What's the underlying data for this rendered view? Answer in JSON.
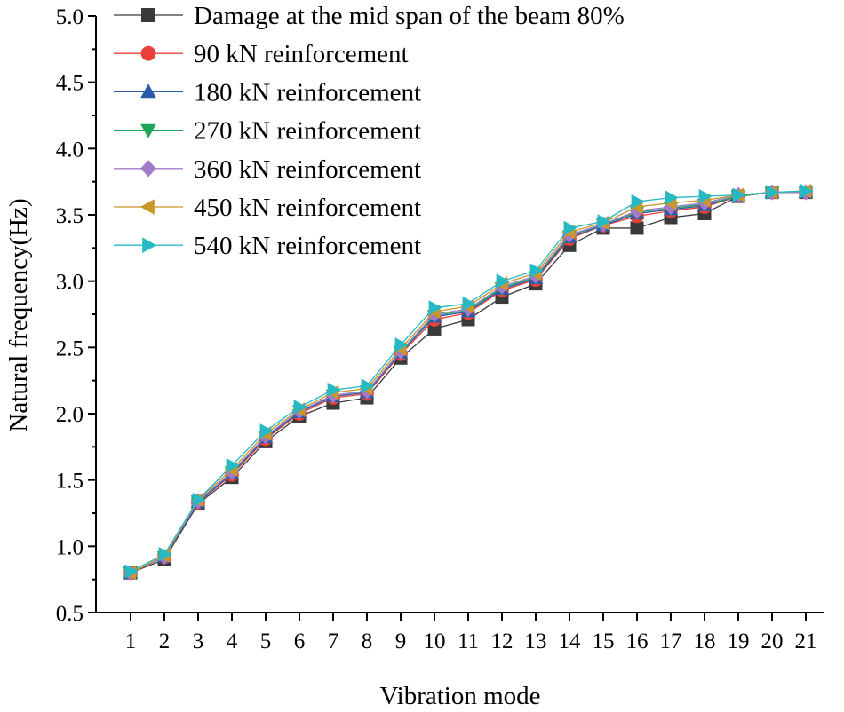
{
  "chart_data": {
    "type": "line",
    "title": "",
    "xlabel": "Vibration mode",
    "ylabel": "Natural frequency(Hz)",
    "ylim": [
      0.5,
      5.0
    ],
    "yticks": [
      "0.5",
      "1.0",
      "1.5",
      "2.0",
      "2.5",
      "3.0",
      "3.5",
      "4.0",
      "4.5",
      "5.0"
    ],
    "categories": [
      "1",
      "2",
      "3",
      "4",
      "5",
      "6",
      "7",
      "8",
      "9",
      "10",
      "11",
      "12",
      "13",
      "14",
      "15",
      "16",
      "17",
      "18",
      "19",
      "20",
      "21"
    ],
    "legend_position": "top-left",
    "grid": false,
    "series": [
      {
        "name": "Damage at the mid span of the beam 80%",
        "color": "#3a3a3a",
        "marker": "square",
        "values": [
          0.8,
          0.9,
          1.32,
          1.52,
          1.79,
          1.98,
          2.08,
          2.12,
          2.42,
          2.64,
          2.71,
          2.88,
          2.98,
          3.27,
          3.4,
          3.4,
          3.48,
          3.51,
          3.64,
          3.67,
          3.67
        ]
      },
      {
        "name": "90 kN reinforcement",
        "color": "#e8413c",
        "marker": "circle",
        "values": [
          0.8,
          0.92,
          1.33,
          1.54,
          1.81,
          2.0,
          2.12,
          2.15,
          2.45,
          2.71,
          2.76,
          2.93,
          3.01,
          3.32,
          3.42,
          3.49,
          3.53,
          3.56,
          3.64,
          3.67,
          3.67
        ]
      },
      {
        "name": "180 kN reinforcement",
        "color": "#2b5aa8",
        "marker": "triangle-up",
        "values": [
          0.8,
          0.92,
          1.33,
          1.55,
          1.82,
          2.01,
          2.13,
          2.16,
          2.46,
          2.73,
          2.77,
          2.94,
          3.02,
          3.33,
          3.42,
          3.51,
          3.54,
          3.57,
          3.64,
          3.67,
          3.67
        ]
      },
      {
        "name": "270 kN reinforcement",
        "color": "#1ea65b",
        "marker": "triangle-down",
        "values": [
          0.8,
          0.92,
          1.34,
          1.56,
          1.83,
          2.02,
          2.14,
          2.17,
          2.47,
          2.74,
          2.78,
          2.95,
          3.03,
          3.34,
          3.43,
          3.52,
          3.55,
          3.58,
          3.64,
          3.67,
          3.67
        ]
      },
      {
        "name": "360 kN reinforcement",
        "color": "#a27ac9",
        "marker": "diamond",
        "values": [
          0.8,
          0.92,
          1.34,
          1.56,
          1.83,
          2.02,
          2.14,
          2.17,
          2.47,
          2.75,
          2.79,
          2.96,
          3.04,
          3.35,
          3.43,
          3.53,
          3.56,
          3.59,
          3.65,
          3.67,
          3.67
        ]
      },
      {
        "name": "450 kN reinforcement",
        "color": "#c9972a",
        "marker": "triangle-left",
        "values": [
          0.8,
          0.93,
          1.35,
          1.58,
          1.85,
          2.03,
          2.16,
          2.19,
          2.49,
          2.77,
          2.81,
          2.98,
          3.06,
          3.37,
          3.44,
          3.56,
          3.59,
          3.61,
          3.65,
          3.67,
          3.68
        ]
      },
      {
        "name": "540 kN reinforcement",
        "color": "#26b9c4",
        "marker": "triangle-right",
        "values": [
          0.81,
          0.94,
          1.35,
          1.61,
          1.87,
          2.05,
          2.18,
          2.21,
          2.52,
          2.8,
          2.83,
          3.0,
          3.08,
          3.4,
          3.45,
          3.6,
          3.63,
          3.64,
          3.65,
          3.67,
          3.68
        ]
      }
    ]
  }
}
